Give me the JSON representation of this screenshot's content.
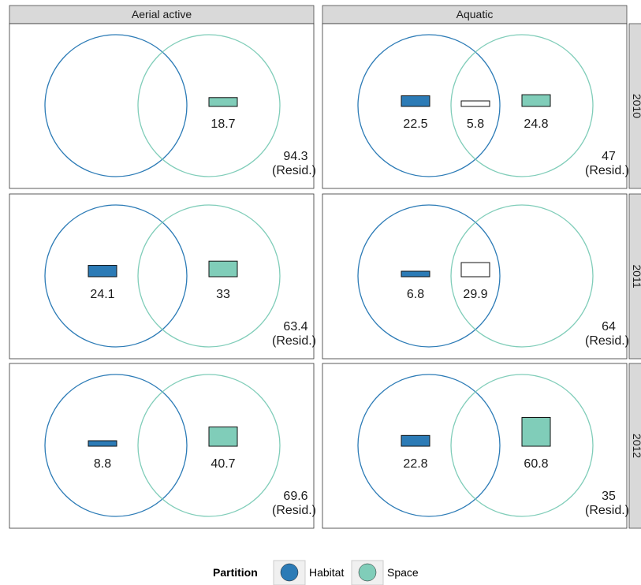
{
  "chart_data": {
    "type": "venn-partition",
    "columns": [
      "Aerial active",
      "Aquatic"
    ],
    "rows": [
      "2010",
      "2011",
      "2012"
    ],
    "residual_label": "(Resid.)",
    "panels": [
      {
        "column": "Aerial active",
        "row": "2010",
        "habitat": null,
        "shared": null,
        "space": 18.7,
        "residual": 94.3
      },
      {
        "column": "Aquatic",
        "row": "2010",
        "habitat": 22.5,
        "shared": 5.8,
        "space": 24.8,
        "residual": 47
      },
      {
        "column": "Aerial active",
        "row": "2011",
        "habitat": 24.1,
        "shared": null,
        "space": 33,
        "residual": 63.4
      },
      {
        "column": "Aquatic",
        "row": "2011",
        "habitat": 6.8,
        "shared": 29.9,
        "space": null,
        "residual": 64
      },
      {
        "column": "Aerial active",
        "row": "2012",
        "habitat": 8.8,
        "shared": null,
        "space": 40.7,
        "residual": 69.6
      },
      {
        "column": "Aquatic",
        "row": "2012",
        "habitat": 22.8,
        "shared": null,
        "space": 60.8,
        "residual": 35
      }
    ],
    "legend": {
      "title": "Partition",
      "items": [
        {
          "label": "Habitat",
          "color": "#2c7bb6"
        },
        {
          "label": "Space",
          "color": "#80cdb9"
        }
      ],
      "placement": "bottom"
    },
    "colors": {
      "habitat": "#2c7bb6",
      "space": "#80cdb9",
      "shared": "#ffffff"
    }
  }
}
